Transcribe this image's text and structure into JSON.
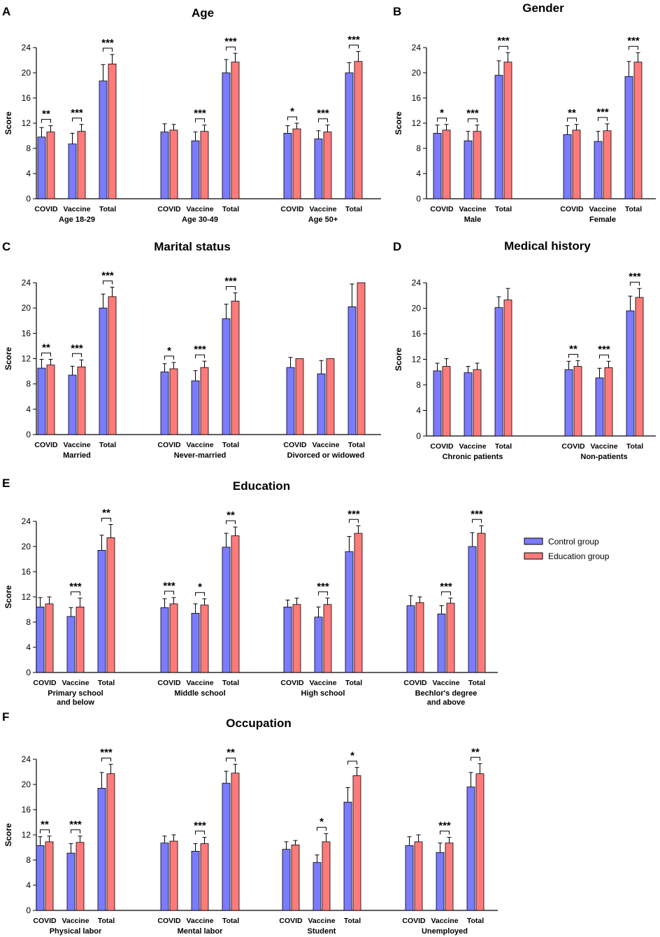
{
  "legend": {
    "control_label": "Control group",
    "education_label": "Education group",
    "control_color": "#7b7bff",
    "education_color": "#ff7b7b"
  },
  "chart_data": [
    {
      "panel": "A",
      "title": "Age",
      "type": "bar",
      "ylabel": "Score",
      "ylim": [
        0,
        24
      ],
      "yticks": [
        0,
        4,
        8,
        12,
        16,
        20,
        24
      ],
      "series_names": [
        "Control group",
        "Education group"
      ],
      "groups": [
        {
          "label": [
            "Age 18-29"
          ],
          "bars": [
            {
              "cat": "COVID",
              "control": 9.8,
              "control_sd": 1.5,
              "education": 10.6,
              "education_sd": 1.0,
              "sig": "**"
            },
            {
              "cat": "Vaccine",
              "control": 8.7,
              "control_sd": 1.7,
              "education": 10.7,
              "education_sd": 1.1,
              "sig": "***"
            },
            {
              "cat": "Total",
              "control": 18.7,
              "control_sd": 2.6,
              "education": 21.4,
              "education_sd": 1.5,
              "sig": "***"
            }
          ]
        },
        {
          "label": [
            "Age 30-49"
          ],
          "bars": [
            {
              "cat": "COVID",
              "control": 10.6,
              "control_sd": 1.3,
              "education": 10.9,
              "education_sd": 0.9,
              "sig": ""
            },
            {
              "cat": "Vaccine",
              "control": 9.2,
              "control_sd": 1.4,
              "education": 10.7,
              "education_sd": 1.0,
              "sig": "***"
            },
            {
              "cat": "Total",
              "control": 20.0,
              "control_sd": 2.1,
              "education": 21.7,
              "education_sd": 1.4,
              "sig": "***"
            }
          ]
        },
        {
          "label": [
            "Age 50+"
          ],
          "bars": [
            {
              "cat": "COVID",
              "control": 10.4,
              "control_sd": 1.2,
              "education": 11.1,
              "education_sd": 0.9,
              "sig": "*"
            },
            {
              "cat": "Vaccine",
              "control": 9.5,
              "control_sd": 1.3,
              "education": 10.6,
              "education_sd": 1.1,
              "sig": "***"
            },
            {
              "cat": "Total",
              "control": 20.0,
              "control_sd": 1.6,
              "education": 21.8,
              "education_sd": 1.6,
              "sig": "***"
            }
          ]
        }
      ]
    },
    {
      "panel": "B",
      "title": "Gender",
      "type": "bar",
      "ylabel": "Score",
      "ylim": [
        0,
        24
      ],
      "yticks": [
        0,
        4,
        8,
        12,
        16,
        20,
        24
      ],
      "series_names": [
        "Control group",
        "Education group"
      ],
      "groups": [
        {
          "label": [
            "Male"
          ],
          "bars": [
            {
              "cat": "COVID",
              "control": 10.4,
              "control_sd": 1.3,
              "education": 10.9,
              "education_sd": 0.9,
              "sig": "*"
            },
            {
              "cat": "Vaccine",
              "control": 9.2,
              "control_sd": 1.5,
              "education": 10.7,
              "education_sd": 1.0,
              "sig": "***"
            },
            {
              "cat": "Total",
              "control": 19.6,
              "control_sd": 2.3,
              "education": 21.7,
              "education_sd": 1.5,
              "sig": "***"
            }
          ]
        },
        {
          "label": [
            "Female"
          ],
          "bars": [
            {
              "cat": "COVID",
              "control": 10.2,
              "control_sd": 1.4,
              "education": 10.9,
              "education_sd": 0.9,
              "sig": "**"
            },
            {
              "cat": "Vaccine",
              "control": 9.1,
              "control_sd": 1.6,
              "education": 10.8,
              "education_sd": 1.1,
              "sig": "***"
            },
            {
              "cat": "Total",
              "control": 19.4,
              "control_sd": 2.4,
              "education": 21.7,
              "education_sd": 1.5,
              "sig": "***"
            }
          ]
        }
      ]
    },
    {
      "panel": "C",
      "title": "Marital status",
      "type": "bar",
      "ylabel": "Score",
      "ylim": [
        0,
        24
      ],
      "yticks": [
        0,
        4,
        8,
        12,
        16,
        20,
        24
      ],
      "series_names": [
        "Control group",
        "Education group"
      ],
      "groups": [
        {
          "label": [
            "Married"
          ],
          "bars": [
            {
              "cat": "COVID",
              "control": 10.5,
              "control_sd": 1.4,
              "education": 11.0,
              "education_sd": 0.9,
              "sig": "**"
            },
            {
              "cat": "Vaccine",
              "control": 9.4,
              "control_sd": 1.4,
              "education": 10.7,
              "education_sd": 1.1,
              "sig": "***"
            },
            {
              "cat": "Total",
              "control": 20.0,
              "control_sd": 2.2,
              "education": 21.8,
              "education_sd": 1.5,
              "sig": "***"
            }
          ]
        },
        {
          "label": [
            "Never-married"
          ],
          "bars": [
            {
              "cat": "COVID",
              "control": 9.9,
              "control_sd": 1.3,
              "education": 10.4,
              "education_sd": 1.0,
              "sig": "*"
            },
            {
              "cat": "Vaccine",
              "control": 8.5,
              "control_sd": 1.6,
              "education": 10.6,
              "education_sd": 1.0,
              "sig": "***"
            },
            {
              "cat": "Total",
              "control": 18.3,
              "control_sd": 2.3,
              "education": 21.1,
              "education_sd": 1.3,
              "sig": "***"
            }
          ]
        },
        {
          "label": [
            "Divorced or widowed"
          ],
          "bars": [
            {
              "cat": "COVID",
              "control": 10.6,
              "control_sd": 1.6,
              "education": 12.0,
              "education_sd": 0,
              "sig": ""
            },
            {
              "cat": "Vaccine",
              "control": 9.6,
              "control_sd": 2.1,
              "education": 12.0,
              "education_sd": 0,
              "sig": ""
            },
            {
              "cat": "Total",
              "control": 20.2,
              "control_sd": 3.6,
              "education": 24.0,
              "education_sd": 0,
              "sig": ""
            }
          ]
        }
      ]
    },
    {
      "panel": "D",
      "title": "Medical history",
      "type": "bar",
      "ylabel": "Score",
      "ylim": [
        0,
        24
      ],
      "yticks": [
        0,
        4,
        8,
        12,
        16,
        20,
        24
      ],
      "series_names": [
        "Control group",
        "Education group"
      ],
      "groups": [
        {
          "label": [
            "Chronic patients"
          ],
          "bars": [
            {
              "cat": "COVID",
              "control": 10.2,
              "control_sd": 1.2,
              "education": 10.9,
              "education_sd": 1.2,
              "sig": ""
            },
            {
              "cat": "Vaccine",
              "control": 9.9,
              "control_sd": 1.0,
              "education": 10.4,
              "education_sd": 1.0,
              "sig": ""
            },
            {
              "cat": "Total",
              "control": 20.1,
              "control_sd": 1.7,
              "education": 21.3,
              "education_sd": 1.8,
              "sig": ""
            }
          ]
        },
        {
          "label": [
            "Non-patients"
          ],
          "bars": [
            {
              "cat": "COVID",
              "control": 10.4,
              "control_sd": 1.3,
              "education": 10.9,
              "education_sd": 0.9,
              "sig": "**"
            },
            {
              "cat": "Vaccine",
              "control": 9.1,
              "control_sd": 1.5,
              "education": 10.7,
              "education_sd": 1.0,
              "sig": "***"
            },
            {
              "cat": "Total",
              "control": 19.6,
              "control_sd": 2.3,
              "education": 21.7,
              "education_sd": 1.4,
              "sig": "***"
            }
          ]
        }
      ]
    },
    {
      "panel": "E",
      "title": "Education",
      "type": "bar",
      "ylabel": "Score",
      "ylim": [
        0,
        24
      ],
      "yticks": [
        0,
        4,
        8,
        12,
        16,
        20,
        24
      ],
      "series_names": [
        "Control group",
        "Education group"
      ],
      "groups": [
        {
          "label": [
            "Primary school",
            "and below"
          ],
          "bars": [
            {
              "cat": "COVID",
              "control": 10.4,
              "control_sd": 1.5,
              "education": 10.9,
              "education_sd": 1.1,
              "sig": ""
            },
            {
              "cat": "Vaccine",
              "control": 8.9,
              "control_sd": 1.4,
              "education": 10.4,
              "education_sd": 1.4,
              "sig": "***"
            },
            {
              "cat": "Total",
              "control": 19.4,
              "control_sd": 2.4,
              "education": 21.4,
              "education_sd": 2.1,
              "sig": "**"
            }
          ]
        },
        {
          "label": [
            "Middle school"
          ],
          "bars": [
            {
              "cat": "COVID",
              "control": 10.3,
              "control_sd": 1.4,
              "education": 10.9,
              "education_sd": 1.0,
              "sig": "***"
            },
            {
              "cat": "Vaccine",
              "control": 9.4,
              "control_sd": 1.5,
              "education": 10.7,
              "education_sd": 1.0,
              "sig": "*"
            },
            {
              "cat": "Total",
              "control": 19.9,
              "control_sd": 2.2,
              "education": 21.7,
              "education_sd": 1.4,
              "sig": "**"
            }
          ]
        },
        {
          "label": [
            "High school"
          ],
          "bars": [
            {
              "cat": "COVID",
              "control": 10.4,
              "control_sd": 1.1,
              "education": 10.8,
              "education_sd": 1.0,
              "sig": ""
            },
            {
              "cat": "Vaccine",
              "control": 8.8,
              "control_sd": 1.6,
              "education": 10.8,
              "education_sd": 1.0,
              "sig": "***"
            },
            {
              "cat": "Total",
              "control": 19.2,
              "control_sd": 2.4,
              "education": 22.1,
              "education_sd": 1.2,
              "sig": "***"
            }
          ]
        },
        {
          "label": [
            "Bechlor's degree",
            "and above"
          ],
          "bars": [
            {
              "cat": "COVID",
              "control": 10.6,
              "control_sd": 1.6,
              "education": 11.1,
              "education_sd": 0.9,
              "sig": ""
            },
            {
              "cat": "Vaccine",
              "control": 9.3,
              "control_sd": 1.3,
              "education": 11.0,
              "education_sd": 0.8,
              "sig": "***"
            },
            {
              "cat": "Total",
              "control": 20.0,
              "control_sd": 2.2,
              "education": 22.1,
              "education_sd": 1.2,
              "sig": "***"
            }
          ]
        }
      ]
    },
    {
      "panel": "F",
      "title": "Occupation",
      "type": "bar",
      "ylabel": "Score",
      "ylim": [
        0,
        24
      ],
      "yticks": [
        0,
        4,
        8,
        12,
        16,
        20,
        24
      ],
      "series_names": [
        "Control group",
        "Education group"
      ],
      "groups": [
        {
          "label": [
            "Physical labor"
          ],
          "bars": [
            {
              "cat": "COVID",
              "control": 10.3,
              "control_sd": 1.4,
              "education": 10.9,
              "education_sd": 0.9,
              "sig": "**"
            },
            {
              "cat": "Vaccine",
              "control": 9.1,
              "control_sd": 1.5,
              "education": 10.8,
              "education_sd": 1.0,
              "sig": "***"
            },
            {
              "cat": "Total",
              "control": 19.4,
              "control_sd": 2.5,
              "education": 21.7,
              "education_sd": 1.5,
              "sig": "***"
            }
          ]
        },
        {
          "label": [
            "Mental labor"
          ],
          "bars": [
            {
              "cat": "COVID",
              "control": 10.7,
              "control_sd": 1.1,
              "education": 11.0,
              "education_sd": 1.0,
              "sig": ""
            },
            {
              "cat": "Vaccine",
              "control": 9.4,
              "control_sd": 1.2,
              "education": 10.6,
              "education_sd": 1.0,
              "sig": "***"
            },
            {
              "cat": "Total",
              "control": 20.2,
              "control_sd": 1.9,
              "education": 21.8,
              "education_sd": 1.4,
              "sig": "**"
            }
          ]
        },
        {
          "label": [
            "Student"
          ],
          "bars": [
            {
              "cat": "COVID",
              "control": 9.7,
              "control_sd": 1.2,
              "education": 10.4,
              "education_sd": 0.7,
              "sig": ""
            },
            {
              "cat": "Vaccine",
              "control": 7.6,
              "control_sd": 1.2,
              "education": 10.9,
              "education_sd": 1.3,
              "sig": "*"
            },
            {
              "cat": "Total",
              "control": 17.2,
              "control_sd": 2.3,
              "education": 21.4,
              "education_sd": 1.3,
              "sig": "*"
            }
          ]
        },
        {
          "label": [
            "Unemployed"
          ],
          "bars": [
            {
              "cat": "COVID",
              "control": 10.3,
              "control_sd": 1.4,
              "education": 10.9,
              "education_sd": 1.1,
              "sig": ""
            },
            {
              "cat": "Vaccine",
              "control": 9.2,
              "control_sd": 1.5,
              "education": 10.7,
              "education_sd": 0.9,
              "sig": "***"
            },
            {
              "cat": "Total",
              "control": 19.6,
              "control_sd": 2.3,
              "education": 21.7,
              "education_sd": 1.6,
              "sig": "**"
            }
          ]
        }
      ]
    }
  ]
}
